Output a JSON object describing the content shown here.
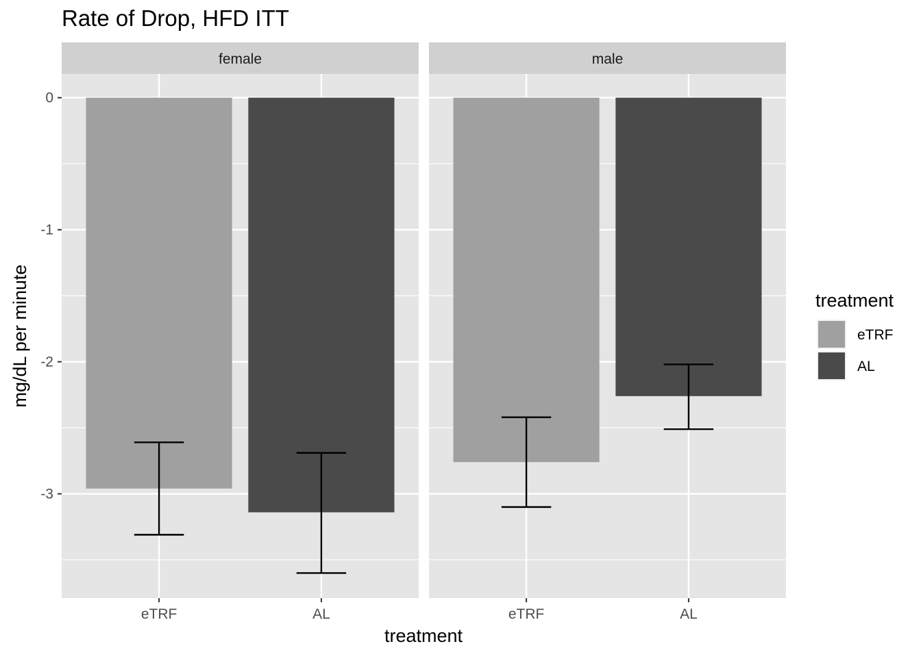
{
  "chart_data": {
    "type": "bar",
    "title": "Rate of Drop, HFD ITT",
    "xlabel": "treatment",
    "ylabel": "mg/dL per minute",
    "categories": [
      "eTRF",
      "AL"
    ],
    "facets": [
      {
        "name": "female",
        "values": [
          -2.96,
          -3.14
        ],
        "error_low": [
          -3.31,
          -3.6
        ],
        "error_high": [
          -2.61,
          -2.69
        ]
      },
      {
        "name": "male",
        "values": [
          -2.76,
          -2.26
        ],
        "error_low": [
          -3.1,
          -2.51
        ],
        "error_high": [
          -2.42,
          -2.02
        ]
      }
    ],
    "ylim": [
      -3.79,
      0.18
    ],
    "y_ticks": [
      0,
      -1,
      -2,
      -3
    ],
    "y_tick_labels": [
      "0",
      "-1",
      "-2",
      "-3"
    ],
    "grid": true,
    "legend": {
      "title": "treatment",
      "position": "right",
      "entries": [
        {
          "label": "eTRF",
          "color": "#a0a0a0"
        },
        {
          "label": "AL",
          "color": "#4a4a4a"
        }
      ]
    },
    "colors": {
      "panel_bg": "#e5e5e5",
      "strip_bg": "#d0d0d0",
      "grid": "#ffffff",
      "error_bar": "#000000"
    }
  }
}
